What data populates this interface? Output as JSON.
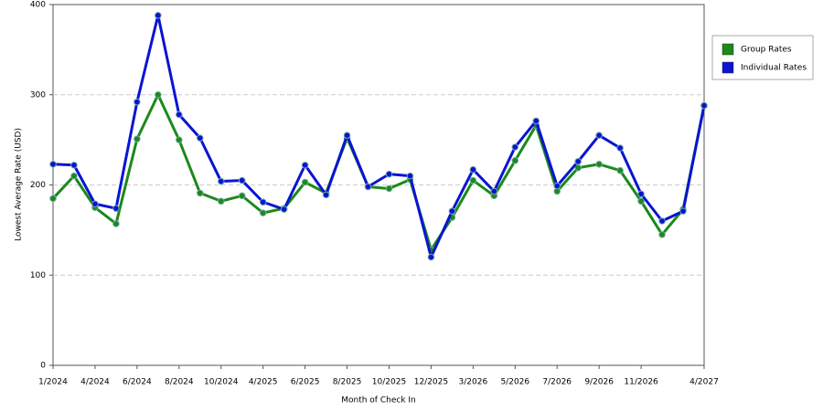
{
  "chart_data": {
    "type": "line",
    "y_label": "Lowest Average Rate (USD)",
    "x_label": "Month of Check In",
    "categories": [
      "1/2024",
      null,
      "4/2024",
      null,
      "6/2024",
      null,
      "8/2024",
      null,
      "10/2024",
      null,
      "4/2025",
      null,
      "6/2025",
      null,
      "8/2025",
      null,
      "10/2025",
      null,
      "12/2025",
      null,
      "3/2026",
      null,
      "5/2026",
      null,
      "7/2026",
      null,
      "9/2026",
      null,
      "11/2026",
      null,
      null,
      "4/2027"
    ],
    "series": [
      {
        "name": "Group Rates",
        "color": "#1a8a1a",
        "values": [
          185,
          210,
          175,
          157,
          251,
          300,
          250,
          191,
          182,
          188,
          169,
          174,
          203,
          191,
          252,
          198,
          196,
          206,
          128,
          164,
          205,
          188,
          227,
          266,
          193,
          219,
          223,
          216,
          182,
          145,
          173,
          288
        ]
      },
      {
        "name": "Individual Rates",
        "color": "#0a14d2",
        "values": [
          223,
          222,
          179,
          174,
          292,
          388,
          278,
          252,
          204,
          205,
          181,
          173,
          222,
          189,
          255,
          198,
          212,
          210,
          120,
          171,
          217,
          193,
          242,
          271,
          199,
          226,
          255,
          241,
          190,
          160,
          171,
          288
        ]
      }
    ],
    "ylim": [
      0,
      400
    ],
    "yticks": [
      0,
      100,
      200,
      300,
      400
    ],
    "grid": true,
    "legend": "top-right"
  }
}
